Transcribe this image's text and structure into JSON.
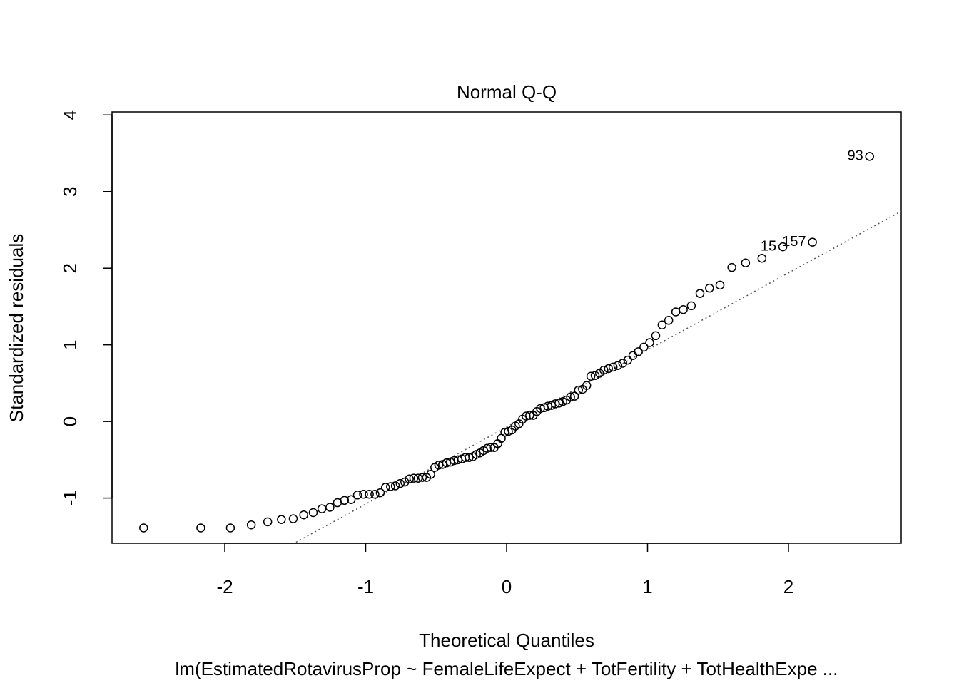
{
  "chart_data": {
    "type": "qq",
    "title": "Normal Q-Q",
    "x_label": "Theoretical Quantiles",
    "y_label": "Standardized residuals",
    "subtitle": "lm(EstimatedRotavirusProp ~ FemaleLifeExpect + TotFertility + TotHealthExpe ...",
    "xlim": [
      -2.8,
      2.8
    ],
    "ylim": [
      -1.59,
      4.04
    ],
    "xticks": [
      -2,
      -1,
      0,
      1,
      2
    ],
    "yticks": [
      -1,
      0,
      1,
      2,
      3,
      4
    ],
    "color": "#000000",
    "line_color": "#555555",
    "reference_line": {
      "intercept": -0.073,
      "slope": 1.006
    },
    "x": [
      -2.5758,
      -2.1701,
      -1.96,
      -1.8119,
      -1.6954,
      -1.5982,
      -1.5141,
      -1.4395,
      -1.3722,
      -1.3106,
      -1.2536,
      -1.2004,
      -1.1503,
      -1.1031,
      -1.0581,
      -1.0152,
      -0.9741,
      -0.9346,
      -0.8965,
      -0.8596,
      -0.8239,
      -0.7892,
      -0.7554,
      -0.7225,
      -0.6903,
      -0.6588,
      -0.628,
      -0.5978,
      -0.5681,
      -0.5388,
      -0.5101,
      -0.4817,
      -0.4538,
      -0.4261,
      -0.3989,
      -0.3719,
      -0.3451,
      -0.3186,
      -0.2924,
      -0.2663,
      -0.2404,
      -0.2147,
      -0.1891,
      -0.1637,
      -0.1383,
      -0.113,
      -0.0878,
      -0.0627,
      -0.0376,
      -0.0125,
      0.0125,
      0.0376,
      0.0627,
      0.0878,
      0.113,
      0.1383,
      0.1637,
      0.1891,
      0.2147,
      0.2404,
      0.2663,
      0.2924,
      0.3186,
      0.3451,
      0.3719,
      0.3989,
      0.4261,
      0.4538,
      0.4817,
      0.5101,
      0.5388,
      0.5681,
      0.5978,
      0.628,
      0.6588,
      0.6903,
      0.7225,
      0.7554,
      0.7892,
      0.8239,
      0.8596,
      0.8965,
      0.9346,
      0.9741,
      1.0152,
      1.0581,
      1.1031,
      1.1503,
      1.2004,
      1.2536,
      1.3106,
      1.3722,
      1.4395,
      1.5141,
      1.5982,
      1.6954,
      1.8119,
      1.96,
      2.1701,
      2.5758
    ],
    "y": [
      -1.39,
      -1.39,
      -1.39,
      -1.35,
      -1.31,
      -1.28,
      -1.27,
      -1.22,
      -1.19,
      -1.14,
      -1.12,
      -1.06,
      -1.03,
      -1.02,
      -0.96,
      -0.95,
      -0.95,
      -0.95,
      -0.93,
      -0.86,
      -0.85,
      -0.84,
      -0.81,
      -0.79,
      -0.75,
      -0.74,
      -0.74,
      -0.73,
      -0.73,
      -0.69,
      -0.6,
      -0.57,
      -0.56,
      -0.54,
      -0.53,
      -0.51,
      -0.5,
      -0.49,
      -0.47,
      -0.47,
      -0.46,
      -0.43,
      -0.41,
      -0.38,
      -0.35,
      -0.34,
      -0.34,
      -0.29,
      -0.22,
      -0.14,
      -0.13,
      -0.11,
      -0.06,
      -0.03,
      0.03,
      0.07,
      0.08,
      0.08,
      0.13,
      0.17,
      0.18,
      0.2,
      0.21,
      0.23,
      0.24,
      0.26,
      0.28,
      0.32,
      0.33,
      0.41,
      0.42,
      0.47,
      0.59,
      0.6,
      0.63,
      0.67,
      0.69,
      0.71,
      0.73,
      0.76,
      0.8,
      0.86,
      0.91,
      0.97,
      1.03,
      1.12,
      1.26,
      1.32,
      1.43,
      1.46,
      1.51,
      1.67,
      1.74,
      1.78,
      2.01,
      2.07,
      2.13,
      2.28,
      2.34,
      3.46
    ],
    "point_labels": [
      null,
      null,
      null,
      null,
      null,
      null,
      null,
      null,
      null,
      null,
      null,
      null,
      null,
      null,
      null,
      null,
      null,
      null,
      null,
      null,
      null,
      null,
      null,
      null,
      null,
      null,
      null,
      null,
      null,
      null,
      null,
      null,
      null,
      null,
      null,
      null,
      null,
      null,
      null,
      null,
      null,
      null,
      null,
      null,
      null,
      null,
      null,
      null,
      null,
      null,
      null,
      null,
      null,
      null,
      null,
      null,
      null,
      null,
      null,
      null,
      null,
      null,
      null,
      null,
      null,
      null,
      null,
      null,
      null,
      null,
      null,
      null,
      null,
      null,
      null,
      null,
      null,
      null,
      null,
      null,
      null,
      null,
      null,
      null,
      null,
      null,
      null,
      null,
      null,
      null,
      null,
      null,
      null,
      null,
      null,
      null,
      null,
      "15",
      "157",
      "93"
    ]
  }
}
